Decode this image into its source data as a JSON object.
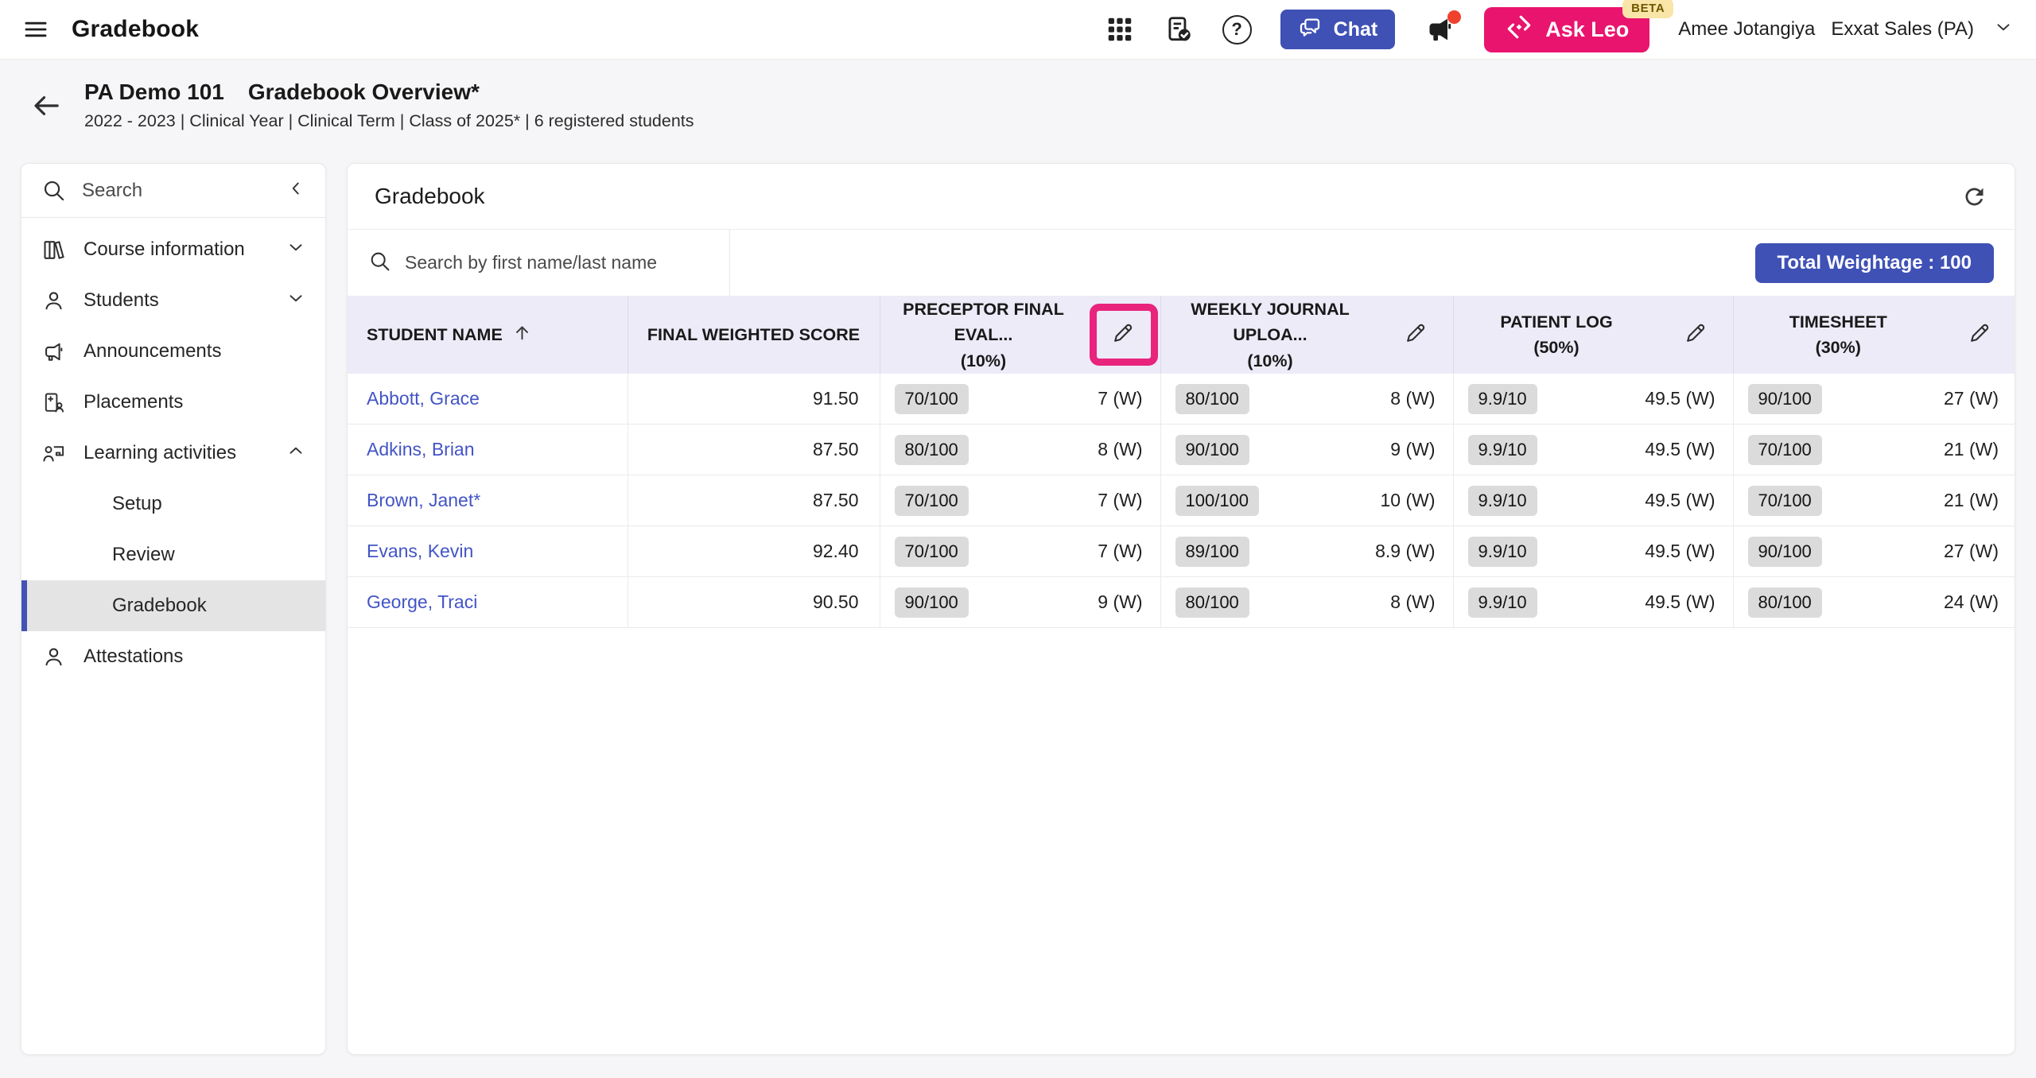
{
  "colors": {
    "indigo_accent": "#3F51B5",
    "link_blue": "#4254C5",
    "highlight_pink": "#E8247D",
    "brand_pink": "#E9146E",
    "beta_badge_bg": "#FAE5A8",
    "table_header_bg": "#EDEBF8",
    "chip_bg": "#DBDBDB",
    "notification_red": "#F0412E"
  },
  "app_bar": {
    "title": "Gradebook",
    "chat_button": "Chat",
    "ask_leo_button": "Ask Leo",
    "beta_badge": "BETA",
    "user_name": "Amee Jotangiya",
    "user_org": "Exxat Sales (PA)"
  },
  "page_header": {
    "course_code": "PA Demo 101",
    "title": "Gradebook Overview*",
    "subtitle": "2022 - 2023 | Clinical Year | Clinical Term | Class of 2025* | 6 registered students"
  },
  "sidebar": {
    "search_label": "Search",
    "items": [
      {
        "label": "Course information"
      },
      {
        "label": "Students"
      },
      {
        "label": "Announcements"
      },
      {
        "label": "Placements"
      },
      {
        "label": "Learning activities"
      },
      {
        "label": "Attestations"
      }
    ],
    "learning_children": [
      {
        "label": "Setup"
      },
      {
        "label": "Review"
      },
      {
        "label": "Gradebook"
      }
    ],
    "selected_item": "Gradebook"
  },
  "main": {
    "title": "Gradebook",
    "search_placeholder": "Search by first name/last name",
    "total_weightage": "Total Weightage : 100",
    "table": {
      "columns": [
        {
          "label": "STUDENT NAME"
        },
        {
          "label": "FINAL WEIGHTED SCORE"
        },
        {
          "label": "PRECEPTOR FINAL EVAL...",
          "weight": "(10%)"
        },
        {
          "label": "WEEKLY JOURNAL UPLOA...",
          "weight": "(10%)"
        },
        {
          "label": "PATIENT LOG",
          "weight": "(50%)"
        },
        {
          "label": "TIMESHEET",
          "weight": "(30%)"
        }
      ],
      "rows": [
        {
          "name": "Abbott, Grace",
          "final_score": "91.50",
          "grades": [
            {
              "score": "70/100",
              "weighted": "7 (W)"
            },
            {
              "score": "80/100",
              "weighted": "8 (W)"
            },
            {
              "score": "9.9/10",
              "weighted": "49.5 (W)"
            },
            {
              "score": "90/100",
              "weighted": "27 (W)"
            }
          ]
        },
        {
          "name": "Adkins, Brian",
          "final_score": "87.50",
          "grades": [
            {
              "score": "80/100",
              "weighted": "8 (W)"
            },
            {
              "score": "90/100",
              "weighted": "9 (W)"
            },
            {
              "score": "9.9/10",
              "weighted": "49.5 (W)"
            },
            {
              "score": "70/100",
              "weighted": "21 (W)"
            }
          ]
        },
        {
          "name": "Brown, Janet*",
          "final_score": "87.50",
          "grades": [
            {
              "score": "70/100",
              "weighted": "7 (W)"
            },
            {
              "score": "100/100",
              "weighted": "10 (W)"
            },
            {
              "score": "9.9/10",
              "weighted": "49.5 (W)"
            },
            {
              "score": "70/100",
              "weighted": "21 (W)"
            }
          ]
        },
        {
          "name": "Evans, Kevin",
          "final_score": "92.40",
          "grades": [
            {
              "score": "70/100",
              "weighted": "7 (W)"
            },
            {
              "score": "89/100",
              "weighted": "8.9 (W)"
            },
            {
              "score": "9.9/10",
              "weighted": "49.5 (W)"
            },
            {
              "score": "90/100",
              "weighted": "27 (W)"
            }
          ]
        },
        {
          "name": "George, Traci",
          "final_score": "90.50",
          "grades": [
            {
              "score": "90/100",
              "weighted": "9 (W)"
            },
            {
              "score": "80/100",
              "weighted": "8 (W)"
            },
            {
              "score": "9.9/10",
              "weighted": "49.5 (W)"
            },
            {
              "score": "80/100",
              "weighted": "24 (W)"
            }
          ]
        }
      ]
    }
  }
}
